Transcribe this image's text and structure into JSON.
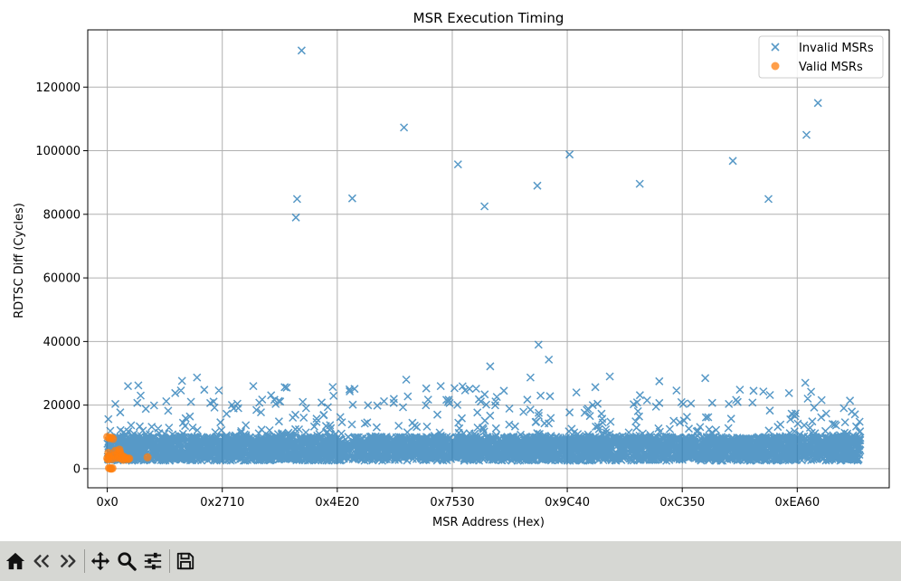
{
  "chart_data": {
    "type": "scatter",
    "title": "MSR Execution Timing",
    "xlabel": "MSR Address (Hex)",
    "ylabel": "RDTSC Diff (Cycles)",
    "xlim": [
      -1700,
      68000
    ],
    "ylim": [
      -6000,
      138000
    ],
    "x_ticks": [
      0,
      10000,
      20000,
      30000,
      40000,
      50000,
      60000
    ],
    "x_tick_labels": [
      "0x0",
      "0x2710",
      "0x4E20",
      "0x7530",
      "0x9C40",
      "0xC350",
      "0xEA60"
    ],
    "y_ticks": [
      0,
      20000,
      40000,
      60000,
      80000,
      100000,
      120000
    ],
    "y_tick_labels": [
      "0",
      "20000",
      "40000",
      "60000",
      "80000",
      "100000",
      "120000"
    ],
    "grid": true,
    "legend_position": "top-right",
    "series": [
      {
        "name": "Invalid MSRs",
        "marker": "x",
        "color": "#1f77b4",
        "x_range": [
          0,
          65535
        ],
        "band_y_range": [
          2500,
          10000
        ],
        "notable_points": [
          {
            "x": 16900,
            "y": 131500
          },
          {
            "x": 16500,
            "y": 84800
          },
          {
            "x": 16400,
            "y": 79000
          },
          {
            "x": 21300,
            "y": 85000
          },
          {
            "x": 25800,
            "y": 107300
          },
          {
            "x": 30500,
            "y": 95700
          },
          {
            "x": 32800,
            "y": 82500
          },
          {
            "x": 37400,
            "y": 89000
          },
          {
            "x": 40200,
            "y": 98800
          },
          {
            "x": 46300,
            "y": 89600
          },
          {
            "x": 54400,
            "y": 96800
          },
          {
            "x": 57500,
            "y": 84800
          },
          {
            "x": 60800,
            "y": 105000
          },
          {
            "x": 61800,
            "y": 115000
          },
          {
            "x": 37500,
            "y": 39000
          },
          {
            "x": 38400,
            "y": 34300
          },
          {
            "x": 33300,
            "y": 32200
          },
          {
            "x": 43700,
            "y": 29000
          },
          {
            "x": 36800,
            "y": 28700
          },
          {
            "x": 7800,
            "y": 28700
          },
          {
            "x": 52000,
            "y": 28500
          },
          {
            "x": 26000,
            "y": 28000
          },
          {
            "x": 48000,
            "y": 27500
          },
          {
            "x": 60700,
            "y": 27000
          },
          {
            "x": 6500,
            "y": 27600
          },
          {
            "x": 1800,
            "y": 26000
          },
          {
            "x": 2700,
            "y": 26200
          },
          {
            "x": 12700,
            "y": 26000
          },
          {
            "x": 15600,
            "y": 25500
          },
          {
            "x": 19600,
            "y": 25700
          },
          {
            "x": 21500,
            "y": 25100
          },
          {
            "x": 29000,
            "y": 26000
          },
          {
            "x": 31500,
            "y": 25100
          },
          {
            "x": 38500,
            "y": 22800
          },
          {
            "x": 40800,
            "y": 24000
          },
          {
            "x": 49500,
            "y": 24600
          },
          {
            "x": 56200,
            "y": 24500
          },
          {
            "x": 61200,
            "y": 24200
          },
          {
            "x": 2900,
            "y": 23000
          },
          {
            "x": 6400,
            "y": 24600
          },
          {
            "x": 9700,
            "y": 24600
          }
        ]
      },
      {
        "name": "Valid MSRs",
        "marker": "o",
        "color": "#ff7f0e",
        "points": [
          {
            "x": 0,
            "y": 10000
          },
          {
            "x": 200,
            "y": 9600
          },
          {
            "x": 350,
            "y": 9800
          },
          {
            "x": 500,
            "y": 9400
          },
          {
            "x": 100,
            "y": 5000
          },
          {
            "x": 150,
            "y": 4000
          },
          {
            "x": 0,
            "y": 3300
          },
          {
            "x": 60,
            "y": 2900
          },
          {
            "x": 250,
            "y": 3500
          },
          {
            "x": 400,
            "y": 3000
          },
          {
            "x": 600,
            "y": 4200
          },
          {
            "x": 800,
            "y": 3400
          },
          {
            "x": 900,
            "y": 4800
          },
          {
            "x": 1000,
            "y": 3600
          },
          {
            "x": 1100,
            "y": 5200
          },
          {
            "x": 1200,
            "y": 3200
          },
          {
            "x": 1300,
            "y": 4000
          },
          {
            "x": 1400,
            "y": 2800
          },
          {
            "x": 1500,
            "y": 3600
          },
          {
            "x": 1600,
            "y": 3300
          },
          {
            "x": 1800,
            "y": 3000
          },
          {
            "x": 1900,
            "y": 3200
          },
          {
            "x": 700,
            "y": 5600
          },
          {
            "x": 1050,
            "y": 6000
          },
          {
            "x": 3500,
            "y": 3600
          },
          {
            "x": 150,
            "y": 200
          },
          {
            "x": 250,
            "y": 100
          },
          {
            "x": 350,
            "y": 0
          },
          {
            "x": 450,
            "y": 150
          }
        ]
      }
    ]
  },
  "toolbar": {
    "buttons": [
      {
        "name": "home-button",
        "icon": "home-icon"
      },
      {
        "name": "back-button",
        "icon": "left-arrow-icon"
      },
      {
        "name": "forward-button",
        "icon": "right-arrow-icon"
      },
      {
        "name": "pan-button",
        "icon": "move-icon"
      },
      {
        "name": "zoom-button",
        "icon": "magnifier-icon"
      },
      {
        "name": "configure-subplots-button",
        "icon": "sliders-icon"
      },
      {
        "name": "save-button",
        "icon": "floppy-disk-icon"
      }
    ]
  }
}
